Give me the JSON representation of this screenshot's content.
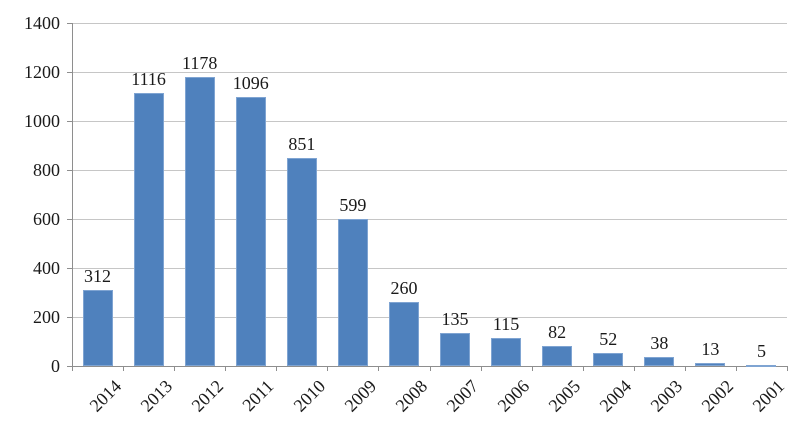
{
  "chart_data": {
    "type": "bar",
    "title": "",
    "xlabel": "",
    "ylabel": "",
    "categories": [
      "2014",
      "2013",
      "2012",
      "2011",
      "2010",
      "2009",
      "2008",
      "2007",
      "2006",
      "2005",
      "2004",
      "2003",
      "2002",
      "2001"
    ],
    "values": [
      312,
      1116,
      1178,
      1096,
      851,
      599,
      260,
      135,
      115,
      82,
      52,
      38,
      13,
      5
    ],
    "ylim": [
      0,
      1400
    ],
    "ytick_interval": 200,
    "ytick_labels": [
      "0",
      "200",
      "400",
      "600",
      "800",
      "1000",
      "1200",
      "1400"
    ],
    "grid": true,
    "legend_position": "none",
    "colors": {
      "bar": "#4F81BD",
      "bar_edge": "#7FA4D2",
      "gridline": "#C6C6C6",
      "axis": "#8E8E8E",
      "text": "#1A1A1A",
      "background": "#FFFFFF"
    }
  }
}
